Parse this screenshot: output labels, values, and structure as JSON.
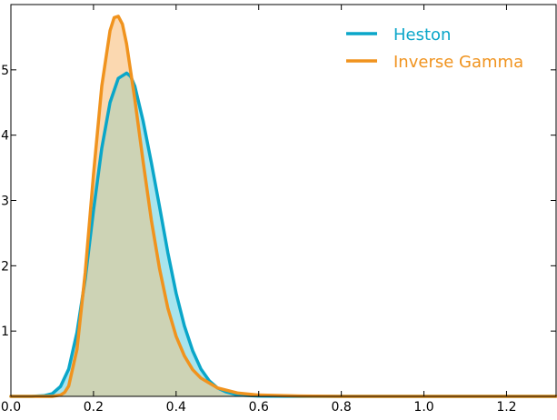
{
  "chart_data": {
    "type": "area",
    "title": "",
    "xlabel": "",
    "ylabel": "",
    "xlim": [
      0.0,
      1.32
    ],
    "ylim": [
      0.0,
      6.0
    ],
    "xticks": [
      0.0,
      0.2,
      0.4,
      0.6,
      0.8,
      1.0,
      1.2
    ],
    "xtick_labels": [
      "0.0",
      "0.2",
      "0.4",
      "0.6",
      "0.8",
      "1.0",
      "1.2"
    ],
    "yticks": [
      1,
      2,
      3,
      4,
      5
    ],
    "ytick_labels": [
      "1",
      "2",
      "3",
      "4",
      "5"
    ],
    "grid": false,
    "legend_position": "top-right",
    "series": [
      {
        "name": "Heston",
        "color": "#0aa6c9",
        "fill": "#a8e4ee",
        "x": [
          0.0,
          0.05,
          0.08,
          0.1,
          0.12,
          0.14,
          0.16,
          0.18,
          0.2,
          0.22,
          0.24,
          0.26,
          0.28,
          0.29,
          0.3,
          0.32,
          0.34,
          0.36,
          0.38,
          0.4,
          0.42,
          0.44,
          0.46,
          0.48,
          0.5,
          0.52,
          0.55,
          0.6,
          0.7,
          0.8,
          1.0,
          1.32
        ],
        "y": [
          0.0,
          0.0,
          0.01,
          0.04,
          0.15,
          0.42,
          0.98,
          1.8,
          2.85,
          3.8,
          4.5,
          4.87,
          4.95,
          4.9,
          4.75,
          4.22,
          3.58,
          2.9,
          2.2,
          1.58,
          1.08,
          0.7,
          0.42,
          0.24,
          0.13,
          0.07,
          0.02,
          0.005,
          0.0,
          0.0,
          0.0,
          0.0
        ]
      },
      {
        "name": "Inverse Gamma",
        "color": "#f0931e",
        "fill": "#fbd8b0",
        "x": [
          0.0,
          0.1,
          0.12,
          0.13,
          0.14,
          0.16,
          0.18,
          0.2,
          0.22,
          0.24,
          0.25,
          0.26,
          0.27,
          0.28,
          0.3,
          0.32,
          0.34,
          0.36,
          0.38,
          0.4,
          0.42,
          0.44,
          0.46,
          0.5,
          0.55,
          0.6,
          0.7,
          0.8,
          1.0,
          1.32
        ],
        "y": [
          0.0,
          0.0,
          0.02,
          0.06,
          0.16,
          0.72,
          1.9,
          3.4,
          4.75,
          5.6,
          5.8,
          5.82,
          5.7,
          5.4,
          4.55,
          3.6,
          2.7,
          1.95,
          1.35,
          0.92,
          0.62,
          0.41,
          0.28,
          0.13,
          0.05,
          0.02,
          0.005,
          0.0,
          0.0,
          0.0
        ]
      }
    ],
    "overlap_fill": "#cdd3b5"
  }
}
